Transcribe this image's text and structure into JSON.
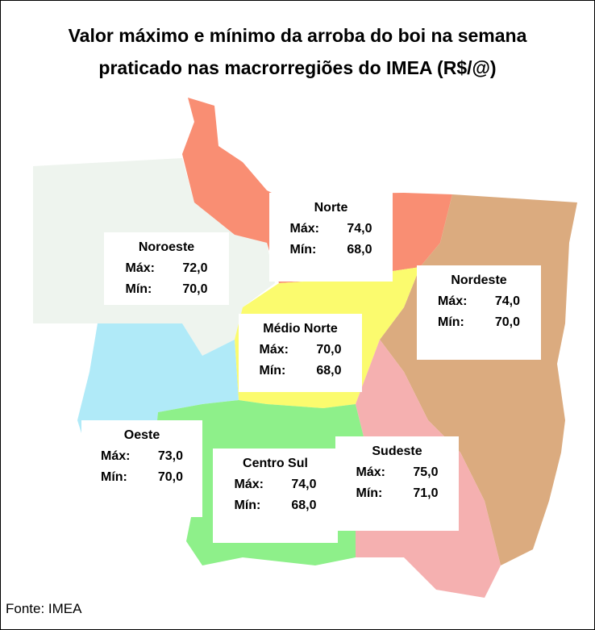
{
  "title_lines": [
    "Valor máximo e mínimo da arroba do boi na semana",
    "praticado nas macrorregiões do IMEA (R$/@)"
  ],
  "regions": [
    {
      "name": "Norte",
      "max_label": "Máx:",
      "max": "74,0",
      "min_label": "Mín:",
      "min": "68,0"
    },
    {
      "name": "Noroeste",
      "max_label": "Máx:",
      "max": "72,0",
      "min_label": "Mín:",
      "min": "70,0"
    },
    {
      "name": "Nordeste",
      "max_label": "Máx:",
      "max": "74,0",
      "min_label": "Mín:",
      "min": "70,0"
    },
    {
      "name": "Médio Norte",
      "max_label": "Máx:",
      "max": "70,0",
      "min_label": "Mín:",
      "min": "68,0"
    },
    {
      "name": "Oeste",
      "max_label": "Máx:",
      "max": "73,0",
      "min_label": "Mín:",
      "min": "70,0"
    },
    {
      "name": "Centro Sul",
      "max_label": "Máx:",
      "max": "74,0",
      "min_label": "Mín:",
      "min": "68,0"
    },
    {
      "name": "Sudeste",
      "max_label": "Máx:",
      "max": "75,0",
      "min_label": "Mín:",
      "min": "71,0"
    }
  ],
  "source": "Fonte: IMEA"
}
